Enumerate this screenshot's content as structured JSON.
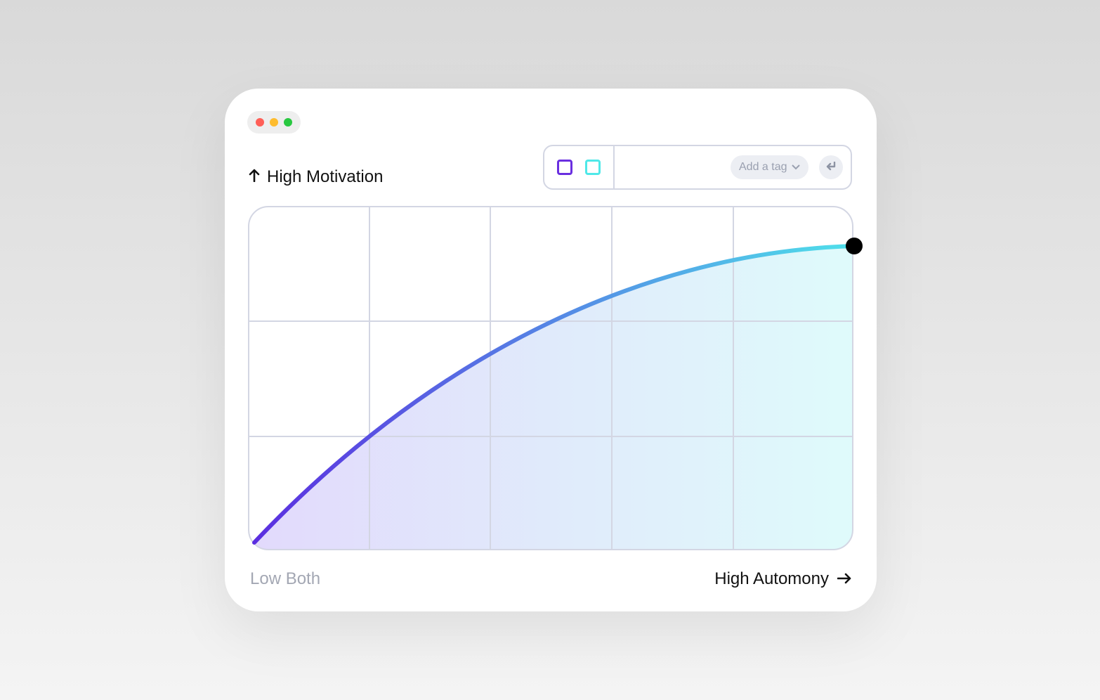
{
  "window": {
    "controls": [
      "close",
      "minimize",
      "maximize"
    ],
    "colors": {
      "close": "#ff5f57",
      "minimize": "#febc2e",
      "maximize": "#28c840"
    }
  },
  "axes": {
    "y_label": "High Motivation",
    "x_low_label": "Low Both",
    "x_high_label": "High Automony"
  },
  "toolbar": {
    "swatches": [
      {
        "name": "purple",
        "color": "#6a2fe0"
      },
      {
        "name": "cyan",
        "color": "#4fe8e8"
      }
    ],
    "tag_placeholder": "Add a tag",
    "enter_icon": "return-arrow-icon"
  },
  "curve": {
    "start_color": "#5b2ee0",
    "end_color": "#4fe0ea"
  }
}
